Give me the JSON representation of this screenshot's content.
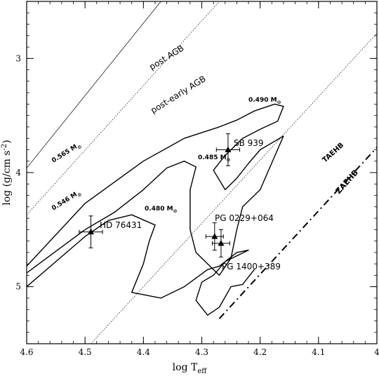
{
  "chart_data": {
    "type": "scatter",
    "title": "",
    "xlabel": "log T",
    "xlabel_sub": "eff",
    "ylabel": "log (g/cm s",
    "ylabel_sup": "-2",
    "ylabel_close": ")",
    "xlim": [
      4.6,
      4.0
    ],
    "ylim": [
      2.5,
      5.5
    ],
    "x_reversed": true,
    "y_reversed": true,
    "x_ticks": [
      {
        "value": 4.6,
        "label": "4.6"
      },
      {
        "value": 4.5,
        "label": "4.5"
      },
      {
        "value": 4.4,
        "label": "4.4"
      },
      {
        "value": 4.3,
        "label": "4.3"
      },
      {
        "value": 4.2,
        "label": "4.2"
      },
      {
        "value": 4.1,
        "label": "4.1"
      },
      {
        "value": 4.0,
        "label": "4"
      }
    ],
    "y_ticks": [
      {
        "value": 3,
        "label": "3"
      },
      {
        "value": 4,
        "label": "4"
      },
      {
        "value": 5,
        "label": "5"
      }
    ],
    "stars": [
      {
        "name": "HD 76431",
        "x": 4.49,
        "y": 4.52,
        "xerr": 0.02,
        "yerr": 0.14
      },
      {
        "name": "SB 939",
        "x": 4.255,
        "y": 3.8,
        "xerr": 0.02,
        "yerr": 0.14
      },
      {
        "name": "PG 0229+064",
        "x": 4.278,
        "y": 4.56,
        "xerr": 0.015,
        "yerr": 0.12
      },
      {
        "name": "PG 1400+389",
        "x": 4.267,
        "y": 4.62,
        "xerr": 0.015,
        "yerr": 0.12
      }
    ],
    "lines": [
      {
        "name": "post AGB",
        "style": "solid",
        "weight": "thin",
        "points": [
          [
            4.6,
            3.96
          ],
          [
            4.37,
            2.5
          ]
        ]
      },
      {
        "name": "post-early AGB",
        "style": "dotted",
        "weight": "thin",
        "points": [
          [
            4.6,
            4.37
          ],
          [
            4.27,
            2.5
          ]
        ]
      },
      {
        "name": "TAEHB",
        "style": "dotted",
        "weight": "thin",
        "points": [
          [
            4.49,
            5.5
          ],
          [
            4.0,
            2.78
          ]
        ]
      },
      {
        "name": "ZAEHB",
        "style": "dashdot",
        "weight": "thick",
        "points": [
          [
            4.27,
            5.28
          ],
          [
            4.0,
            3.78
          ]
        ]
      }
    ],
    "tracks": [
      {
        "name": "0.490 M",
        "sub": "⊙",
        "points": [
          [
            4.6,
            4.82
          ],
          [
            4.5,
            4.27
          ],
          [
            4.4,
            3.9
          ],
          [
            4.33,
            3.7
          ],
          [
            4.27,
            3.6
          ],
          [
            4.24,
            3.54
          ],
          [
            4.21,
            3.46
          ],
          [
            4.175,
            3.4
          ],
          [
            4.16,
            3.42
          ],
          [
            4.17,
            3.55
          ],
          [
            4.2,
            3.62
          ],
          [
            4.23,
            3.7
          ],
          [
            4.26,
            3.85
          ],
          [
            4.28,
            3.98
          ],
          [
            4.26,
            4.15
          ],
          [
            4.24,
            4.05
          ],
          [
            4.22,
            3.92
          ],
          [
            4.2,
            3.8
          ],
          [
            4.16,
            3.68
          ]
        ]
      },
      {
        "name": "0.485 M",
        "sub": "⊙",
        "points": [
          [
            4.6,
            4.88
          ],
          [
            4.5,
            4.5
          ],
          [
            4.45,
            4.35
          ],
          [
            4.4,
            4.15
          ],
          [
            4.36,
            3.96
          ],
          [
            4.33,
            3.9
          ],
          [
            4.31,
            3.95
          ],
          [
            4.32,
            4.15
          ],
          [
            4.32,
            4.5
          ],
          [
            4.31,
            4.7
          ],
          [
            4.28,
            4.85
          ],
          [
            4.27,
            4.9
          ],
          [
            4.25,
            4.75
          ],
          [
            4.24,
            4.5
          ],
          [
            4.23,
            4.3
          ],
          [
            4.2,
            4.15
          ],
          [
            4.16,
            3.68
          ]
        ]
      },
      {
        "name": "0.480 M",
        "sub": "⊙",
        "points": [
          [
            4.6,
            5.0
          ],
          [
            4.5,
            4.56
          ],
          [
            4.46,
            4.42
          ],
          [
            4.42,
            4.37
          ],
          [
            4.38,
            4.46
          ],
          [
            4.39,
            4.6
          ],
          [
            4.4,
            4.8
          ],
          [
            4.42,
            5.05
          ],
          [
            4.37,
            5.1
          ],
          [
            4.33,
            5.0
          ],
          [
            4.29,
            4.85
          ],
          [
            4.27,
            4.82
          ],
          [
            4.24,
            4.7
          ],
          [
            4.22,
            4.68
          ],
          [
            4.26,
            4.78
          ],
          [
            4.28,
            4.9
          ],
          [
            4.3,
            4.96
          ],
          [
            4.31,
            5.12
          ],
          [
            4.29,
            5.25
          ],
          [
            4.27,
            5.18
          ],
          [
            4.25,
            5.0
          ],
          [
            4.23,
            4.98
          ],
          [
            4.21,
            4.85
          ]
        ]
      }
    ],
    "star_labels": {
      "hd": "HD 76431",
      "sb": "SB 939",
      "pg0229": "PG 0229+064",
      "pg1400": "PG 1400+389"
    },
    "line_labels": {
      "postagb": "post AGB",
      "postearly": "post-early AGB",
      "taehb": "TAEHB",
      "zaehb": "ZAEHB"
    },
    "mass_labels": {
      "m565": "0.565 M",
      "m546": "0.546 M",
      "m490": "0.490 M",
      "m485": "0.485 M",
      "m480": "0.480 M",
      "sun": "⊙"
    }
  }
}
